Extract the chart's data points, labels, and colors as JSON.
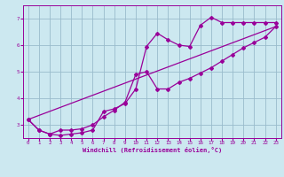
{
  "xlabel": "Windchill (Refroidissement éolien,°C)",
  "bg_color": "#cce8f0",
  "grid_color": "#99bbcc",
  "line_color": "#990099",
  "marker": "D",
  "markersize": 2.0,
  "linewidth": 0.9,
  "xlim": [
    -0.5,
    23.5
  ],
  "ylim": [
    2.5,
    7.5
  ],
  "yticks": [
    3,
    4,
    5,
    6,
    7
  ],
  "xticks": [
    0,
    1,
    2,
    3,
    4,
    5,
    6,
    7,
    8,
    9,
    10,
    11,
    12,
    13,
    14,
    15,
    16,
    17,
    18,
    19,
    20,
    21,
    22,
    23
  ],
  "series": [
    {
      "x": [
        0,
        1,
        2,
        3,
        4,
        5,
        6,
        7,
        8,
        9,
        10,
        11,
        12,
        13,
        14,
        15,
        16,
        17,
        18,
        19,
        20,
        21,
        22,
        23
      ],
      "y": [
        3.2,
        2.8,
        2.65,
        2.6,
        2.65,
        2.7,
        2.8,
        3.5,
        3.6,
        3.8,
        4.35,
        5.95,
        6.45,
        6.2,
        6.0,
        5.95,
        6.75,
        7.05,
        6.85,
        6.85,
        6.85,
        6.85,
        6.85,
        6.85
      ]
    },
    {
      "x": [
        0,
        1,
        2,
        3,
        4,
        5,
        6,
        7,
        8,
        9,
        10,
        11,
        12,
        13,
        14,
        15,
        16,
        17,
        18,
        19,
        20,
        21,
        22,
        23
      ],
      "y": [
        3.2,
        2.8,
        2.65,
        2.8,
        2.8,
        2.85,
        3.0,
        3.3,
        3.55,
        3.85,
        4.9,
        5.0,
        4.35,
        4.35,
        4.6,
        4.75,
        4.95,
        5.15,
        5.4,
        5.65,
        5.9,
        6.1,
        6.3,
        6.7
      ]
    },
    {
      "x": [
        0,
        23
      ],
      "y": [
        3.2,
        6.7
      ]
    }
  ]
}
